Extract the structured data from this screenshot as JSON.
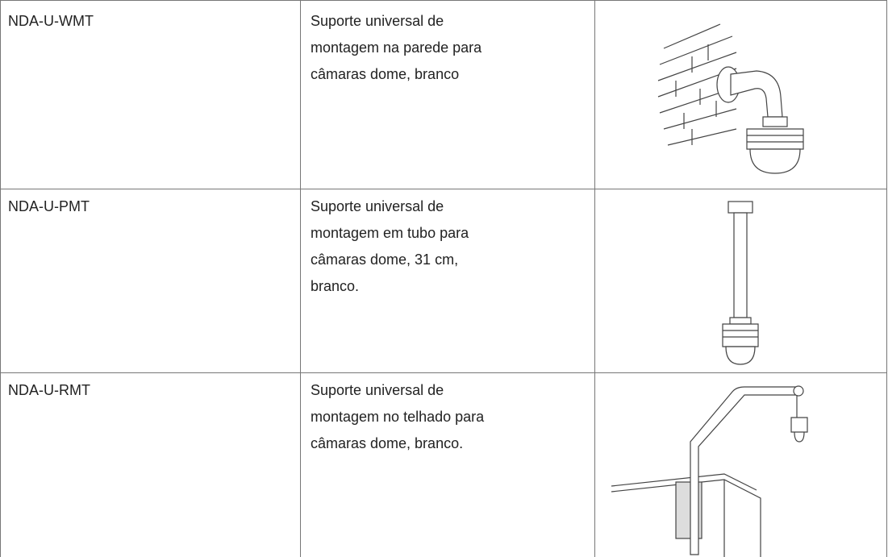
{
  "table": {
    "rows": [
      {
        "code": "NDA-U-WMT",
        "description": [
          "Suporte universal de",
          "montagem na parede para",
          "câmaras dome, branco"
        ]
      },
      {
        "code": "NDA-U-PMT",
        "description": [
          "Suporte universal de",
          "montagem em tubo para",
          "câmaras dome, 31 cm,",
          "branco."
        ]
      },
      {
        "code": "NDA-U-RMT",
        "description": [
          "Suporte universal de",
          "montagem no telhado para",
          "câmaras dome, branco."
        ]
      }
    ]
  }
}
